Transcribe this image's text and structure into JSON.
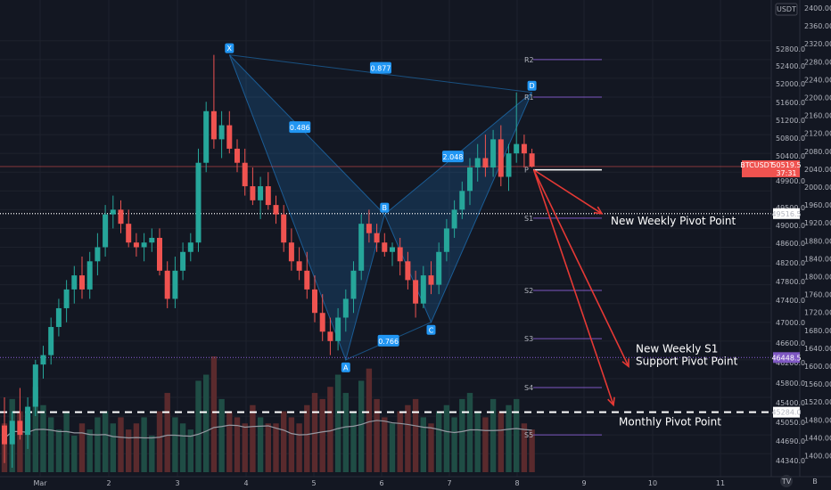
{
  "chart_data": {
    "type": "candlestick",
    "symbol_label": "BTCUSDT",
    "last_price": "50519.5",
    "countdown": "37:31",
    "currency_label": "USDT",
    "right_axis_ticks": [
      "52800.0",
      "52400.0",
      "52000.0",
      "51600.0",
      "51200.0",
      "50800.0",
      "50400.0",
      "49900.0",
      "49500.0",
      "49000.0",
      "48600.0",
      "48200.0",
      "47800.0",
      "47400.0",
      "47000.0",
      "46600.0",
      "46200.0",
      "45800.0",
      "45400.0",
      "45050.0",
      "44690.0",
      "44340.0"
    ],
    "far_axis_ticks": [
      "2400.00",
      "2360.00",
      "2320.00",
      "2280.00",
      "2240.00",
      "2200.00",
      "2160.00",
      "2120.00",
      "2080.00",
      "2040.00",
      "2000.00",
      "1960.00",
      "1920.00",
      "1880.00",
      "1840.00",
      "1800.00",
      "1760.00",
      "1720.00",
      "1680.00",
      "1640.00",
      "1600.00",
      "1560.00",
      "1520.00",
      "1480.00",
      "1440.00",
      "1400.00"
    ],
    "x_ticks": [
      "Mar",
      "2",
      "3",
      "4",
      "5",
      "6",
      "7",
      "8",
      "9",
      "10",
      "11"
    ],
    "price_range": [
      44100,
      53500
    ],
    "grid": true,
    "candles": [
      {
        "o": 45000,
        "h": 45600,
        "l": 44200,
        "c": 44600
      },
      {
        "o": 44600,
        "h": 45300,
        "l": 44100,
        "c": 45100
      },
      {
        "o": 45100,
        "h": 45800,
        "l": 44700,
        "c": 44800
      },
      {
        "o": 44800,
        "h": 45600,
        "l": 44500,
        "c": 45400
      },
      {
        "o": 45400,
        "h": 46400,
        "l": 45200,
        "c": 46300
      },
      {
        "o": 46300,
        "h": 46700,
        "l": 46000,
        "c": 46500
      },
      {
        "o": 46500,
        "h": 47300,
        "l": 46300,
        "c": 47100
      },
      {
        "o": 47100,
        "h": 47700,
        "l": 46900,
        "c": 47500
      },
      {
        "o": 47500,
        "h": 48100,
        "l": 47200,
        "c": 47900
      },
      {
        "o": 47900,
        "h": 48400,
        "l": 47600,
        "c": 48200
      },
      {
        "o": 48200,
        "h": 48600,
        "l": 47700,
        "c": 47900
      },
      {
        "o": 47900,
        "h": 48700,
        "l": 47700,
        "c": 48500
      },
      {
        "o": 48500,
        "h": 49100,
        "l": 48200,
        "c": 48800
      },
      {
        "o": 48800,
        "h": 49700,
        "l": 48600,
        "c": 49500
      },
      {
        "o": 49500,
        "h": 49900,
        "l": 49200,
        "c": 49600
      },
      {
        "o": 49600,
        "h": 49800,
        "l": 49100,
        "c": 49300
      },
      {
        "o": 49300,
        "h": 49600,
        "l": 48800,
        "c": 48900
      },
      {
        "o": 48900,
        "h": 49100,
        "l": 48600,
        "c": 48800
      },
      {
        "o": 48800,
        "h": 49100,
        "l": 48500,
        "c": 48900
      },
      {
        "o": 48900,
        "h": 49200,
        "l": 48700,
        "c": 49000
      },
      {
        "o": 49000,
        "h": 49200,
        "l": 48200,
        "c": 48300
      },
      {
        "o": 48300,
        "h": 48500,
        "l": 47500,
        "c": 47700
      },
      {
        "o": 47700,
        "h": 48600,
        "l": 47500,
        "c": 48300
      },
      {
        "o": 48300,
        "h": 48900,
        "l": 48100,
        "c": 48700
      },
      {
        "o": 48700,
        "h": 49100,
        "l": 48500,
        "c": 48900
      },
      {
        "o": 48900,
        "h": 50900,
        "l": 48700,
        "c": 50600
      },
      {
        "o": 50600,
        "h": 51900,
        "l": 50400,
        "c": 51700
      },
      {
        "o": 51700,
        "h": 52900,
        "l": 50900,
        "c": 51100
      },
      {
        "o": 51100,
        "h": 51700,
        "l": 50700,
        "c": 51400
      },
      {
        "o": 51400,
        "h": 51700,
        "l": 50800,
        "c": 50900
      },
      {
        "o": 50900,
        "h": 51100,
        "l": 50400,
        "c": 50600
      },
      {
        "o": 50600,
        "h": 50900,
        "l": 49900,
        "c": 50100
      },
      {
        "o": 50100,
        "h": 50500,
        "l": 49700,
        "c": 49800
      },
      {
        "o": 49800,
        "h": 50300,
        "l": 49400,
        "c": 50100
      },
      {
        "o": 50100,
        "h": 50400,
        "l": 49600,
        "c": 49700
      },
      {
        "o": 49700,
        "h": 49900,
        "l": 49300,
        "c": 49500
      },
      {
        "o": 49500,
        "h": 49700,
        "l": 48700,
        "c": 48900
      },
      {
        "o": 48900,
        "h": 49200,
        "l": 48300,
        "c": 48500
      },
      {
        "o": 48500,
        "h": 48800,
        "l": 48100,
        "c": 48300
      },
      {
        "o": 48300,
        "h": 48700,
        "l": 47700,
        "c": 47900
      },
      {
        "o": 47900,
        "h": 48200,
        "l": 47200,
        "c": 47400
      },
      {
        "o": 47400,
        "h": 47800,
        "l": 46800,
        "c": 47000
      },
      {
        "o": 47000,
        "h": 47300,
        "l": 46500,
        "c": 46800
      },
      {
        "o": 46800,
        "h": 47500,
        "l": 46600,
        "c": 47300
      },
      {
        "o": 47300,
        "h": 47900,
        "l": 47000,
        "c": 47700
      },
      {
        "o": 47700,
        "h": 48500,
        "l": 47400,
        "c": 48300
      },
      {
        "o": 48300,
        "h": 49500,
        "l": 48100,
        "c": 49300
      },
      {
        "o": 49300,
        "h": 49600,
        "l": 48900,
        "c": 49100
      },
      {
        "o": 49100,
        "h": 49300,
        "l": 48700,
        "c": 48900
      },
      {
        "o": 48900,
        "h": 49100,
        "l": 48600,
        "c": 48700
      },
      {
        "o": 48700,
        "h": 48900,
        "l": 48400,
        "c": 48800
      },
      {
        "o": 48800,
        "h": 49000,
        "l": 48200,
        "c": 48500
      },
      {
        "o": 48500,
        "h": 48700,
        "l": 47900,
        "c": 48100
      },
      {
        "o": 48100,
        "h": 48300,
        "l": 47300,
        "c": 47600
      },
      {
        "o": 47600,
        "h": 48400,
        "l": 47500,
        "c": 48200
      },
      {
        "o": 48200,
        "h": 48500,
        "l": 47800,
        "c": 48000
      },
      {
        "o": 48000,
        "h": 48900,
        "l": 47800,
        "c": 48700
      },
      {
        "o": 48700,
        "h": 49400,
        "l": 48500,
        "c": 49200
      },
      {
        "o": 49200,
        "h": 49800,
        "l": 49000,
        "c": 49600
      },
      {
        "o": 49600,
        "h": 50200,
        "l": 49400,
        "c": 50000
      },
      {
        "o": 50000,
        "h": 50700,
        "l": 49700,
        "c": 50500
      },
      {
        "o": 50500,
        "h": 51000,
        "l": 50200,
        "c": 50700
      },
      {
        "o": 50700,
        "h": 51200,
        "l": 50300,
        "c": 50500
      },
      {
        "o": 50500,
        "h": 51300,
        "l": 50300,
        "c": 51100
      },
      {
        "o": 51100,
        "h": 51400,
        "l": 50100,
        "c": 50300
      },
      {
        "o": 50300,
        "h": 51000,
        "l": 50000,
        "c": 50800
      },
      {
        "o": 50800,
        "h": 52100,
        "l": 50600,
        "c": 51000
      },
      {
        "o": 51000,
        "h": 51200,
        "l": 50500,
        "c": 50800
      },
      {
        "o": 50800,
        "h": 50900,
        "l": 50500,
        "c": 50520
      }
    ],
    "volume": [
      8,
      12,
      10,
      9,
      14,
      11,
      9,
      7,
      10,
      6,
      8,
      7,
      9,
      10,
      8,
      9,
      7,
      8,
      9,
      6,
      10,
      13,
      9,
      8,
      7,
      15,
      16,
      19,
      12,
      10,
      9,
      8,
      11,
      9,
      8,
      8,
      10,
      9,
      8,
      11,
      13,
      12,
      14,
      16,
      13,
      10,
      15,
      17,
      12,
      9,
      8,
      10,
      11,
      12,
      9,
      8,
      10,
      11,
      9,
      12,
      13,
      10,
      9,
      12,
      10,
      11,
      12,
      8,
      7
    ],
    "pivots": [
      {
        "name": "R2",
        "value": 52800
      },
      {
        "name": "R1",
        "value": 52000
      },
      {
        "name": "P",
        "value": 50450
      },
      {
        "name": "S1",
        "value": 49420
      },
      {
        "name": "S2",
        "value": 47880
      },
      {
        "name": "S3",
        "value": 46850
      },
      {
        "name": "S4",
        "value": 45810
      },
      {
        "name": "S5",
        "value": 44800
      }
    ],
    "pattern": {
      "points": [
        {
          "label": "X",
          "value": 52900
        },
        {
          "label": "A",
          "value": 46400
        },
        {
          "label": "B",
          "value": 49500
        },
        {
          "label": "C",
          "value": 47200
        },
        {
          "label": "D",
          "value": 52100
        }
      ],
      "ratios": [
        "0.877",
        "0.486",
        "2.048",
        "0.766"
      ]
    },
    "levels": [
      {
        "label": "New Weekly Pivot Point",
        "value": 49516.5,
        "price_tag": "49516.5"
      },
      {
        "label": "New Weekly S1 Support Pivot Point",
        "value": 46448.5,
        "price_tag": "46448.5"
      },
      {
        "label": "Monthly Pivot Point",
        "value": 45284.0,
        "price_tag": "45284.0"
      }
    ],
    "annotations": {
      "weekly_pivot": "New Weekly Pivot Point",
      "weekly_s1_line1": "New Weekly S1",
      "weekly_s1_line2": "Support Pivot Point",
      "monthly_pivot": "Monthly Pivot Point"
    },
    "colors": {
      "up": "#26a69a",
      "down": "#ef5350",
      "up_vol": "#1f4d45",
      "down_vol": "#5a2a2d",
      "pivot": "#7e57c2",
      "pattern": "#2196f3",
      "arrow": "#e53935",
      "price_tag": "#ef5350",
      "s1_tag": "#7e57c2"
    },
    "logo": "TV",
    "axis_corner": "B"
  }
}
